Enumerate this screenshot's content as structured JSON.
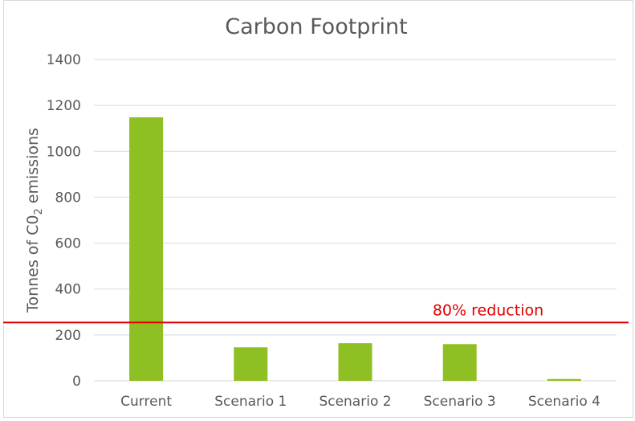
{
  "chart_data": {
    "type": "bar",
    "title": "Carbon Footprint",
    "ylabel": {
      "prefix": "Tonnes of C0",
      "subscript": "2",
      "suffix": " emissions"
    },
    "xlabel": "",
    "categories": [
      "Current",
      "Scenario 1",
      "Scenario 2",
      "Scenario 3",
      "Scenario 4"
    ],
    "values": [
      1148,
      146,
      164,
      160,
      8
    ],
    "ylim": [
      0,
      1400
    ],
    "yticks": [
      0,
      200,
      400,
      600,
      800,
      1000,
      1200,
      1400
    ],
    "grid": true,
    "bar_color": "#8fc023",
    "gridline_color": "#d9d9d9",
    "reference_line": {
      "value": 254,
      "label": "80% reduction",
      "color": "#e00000"
    }
  }
}
